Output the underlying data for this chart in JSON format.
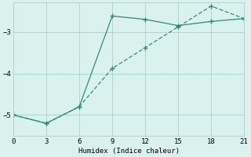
{
  "line1_x": [
    0,
    3,
    6,
    9,
    12,
    15,
    18,
    21
  ],
  "line1_y": [
    -5.0,
    -5.2,
    -4.8,
    -2.62,
    -2.7,
    -2.85,
    -2.75,
    -2.68
  ],
  "line2_x": [
    0,
    3,
    6,
    9,
    12,
    15,
    18,
    21
  ],
  "line2_y": [
    -5.0,
    -5.2,
    -4.8,
    -3.88,
    -3.38,
    -2.88,
    -2.38,
    -2.68
  ],
  "line_color": "#2d8b7b",
  "bg_color": "#daf2ee",
  "grid_color": "#aad8d0",
  "xlabel": "Humidex (Indice chaleur)",
  "xlim": [
    0,
    21
  ],
  "ylim": [
    -5.5,
    -2.3
  ],
  "xticks": [
    0,
    3,
    6,
    9,
    12,
    15,
    18,
    21
  ],
  "yticks": [
    -5,
    -4,
    -3
  ],
  "marker_size": 2.5
}
